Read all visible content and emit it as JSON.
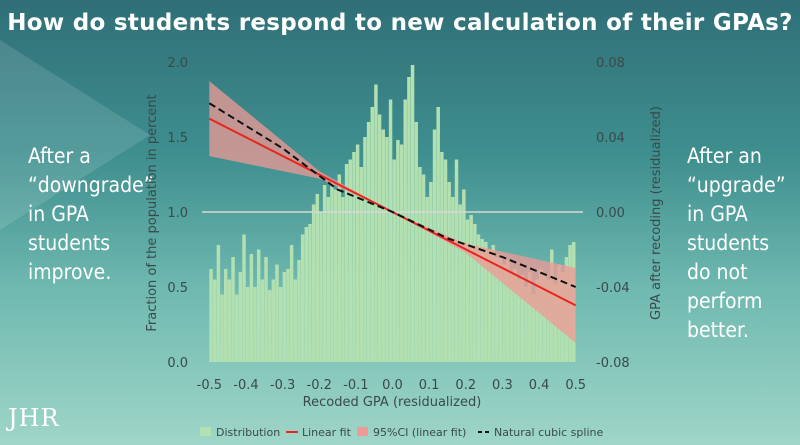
{
  "header": {
    "title": "How do students respond to new calculation of their GPAs?"
  },
  "left_note": [
    "After a",
    "“downgrade”",
    "in GPA",
    "students",
    "improve."
  ],
  "right_note": [
    "After an",
    "“upgrade”",
    "in GPA",
    "students",
    "do not",
    "perform",
    "better."
  ],
  "logo_text": "JHR",
  "colors": {
    "hist": "#b3e0b1",
    "linear": "#e8251f",
    "ci": "#f09a96",
    "spline": "#111111",
    "zero": "#d7d7d7"
  },
  "chart_data": {
    "type": "bar",
    "xlabel": "Recoded GPA (residualized)",
    "ylabel_left": "Fraction of the population in percent",
    "ylabel_right": "GPA after recoding (residualized)",
    "xlim": [
      -0.52,
      0.52
    ],
    "ylim_left": [
      0,
      2.0
    ],
    "ylim_right": [
      -0.08,
      0.08
    ],
    "x_ticks": [
      -0.5,
      -0.4,
      -0.3,
      -0.2,
      -0.1,
      0.0,
      0.1,
      0.2,
      0.3,
      0.4,
      0.5
    ],
    "x_tick_labels": [
      "-0.5",
      "-0.4",
      "-0.3",
      "-0.2",
      "-0.1",
      "0.0",
      "0.1",
      "0.2",
      "0.3",
      "0.4",
      "0.5"
    ],
    "y_left_ticks": [
      0.0,
      0.5,
      1.0,
      1.5,
      2.0
    ],
    "y_left_tick_labels": [
      "0.0",
      "0.5",
      "1.0",
      "1.5",
      "2.0"
    ],
    "y_right_ticks": [
      -0.08,
      -0.04,
      0.0,
      0.04,
      0.08
    ],
    "y_right_tick_labels": [
      "-0.08",
      "-0.04",
      "0.00",
      "0.04",
      "0.08"
    ],
    "legend": [
      {
        "label": "Distribution",
        "kind": "patch-hist"
      },
      {
        "label": "Linear fit",
        "kind": "line-linear"
      },
      {
        "label": "95%CI (linear fit)",
        "kind": "patch-ci"
      },
      {
        "label": "Natural cubic spline",
        "kind": "line-spline"
      }
    ],
    "legend_position": "bottom",
    "histogram": {
      "bin_start": -0.5,
      "bin_width": 0.01,
      "values": [
        0.62,
        0.55,
        0.78,
        0.45,
        0.62,
        0.55,
        0.7,
        0.45,
        0.6,
        0.85,
        0.5,
        0.72,
        0.5,
        0.75,
        0.55,
        0.7,
        0.48,
        0.55,
        0.65,
        0.5,
        0.6,
        0.62,
        0.78,
        0.55,
        0.68,
        0.85,
        0.9,
        0.92,
        1.05,
        1.12,
        1.0,
        1.18,
        1.1,
        1.2,
        1.15,
        1.25,
        1.1,
        1.32,
        1.35,
        1.4,
        1.45,
        1.3,
        1.5,
        1.6,
        1.7,
        1.85,
        1.65,
        1.55,
        1.5,
        1.75,
        1.35,
        1.48,
        1.45,
        1.75,
        1.9,
        1.98,
        1.6,
        1.3,
        1.25,
        1.1,
        1.2,
        1.55,
        1.7,
        1.4,
        1.35,
        1.2,
        1.1,
        1.35,
        1.05,
        1.15,
        0.95,
        0.98,
        0.92,
        0.85,
        0.82,
        0.8,
        0.75,
        0.78,
        0.7,
        0.72,
        0.65,
        0.68,
        0.6,
        0.62,
        0.55,
        0.58,
        0.5,
        0.6,
        0.45,
        0.55,
        0.62,
        0.58,
        0.55,
        0.75,
        0.52,
        0.65,
        0.6,
        0.7,
        0.78,
        0.8
      ],
      "n_bins": 100
    },
    "linear_fit": {
      "x": [
        -0.5,
        0.5
      ],
      "y": [
        0.0498,
        -0.0498
      ]
    },
    "ci_upper": {
      "x": [
        -0.5,
        -0.2,
        0.0,
        0.2,
        0.5
      ],
      "y": [
        0.0698,
        0.0218,
        -0.0002,
        -0.0168,
        -0.0298
      ]
    },
    "ci_lower": {
      "x": [
        -0.5,
        -0.2,
        0.0,
        0.2,
        0.5
      ],
      "y": [
        0.0298,
        0.0178,
        0.0002,
        -0.0218,
        -0.0698
      ]
    },
    "spline": {
      "x": [
        -0.5,
        -0.3,
        -0.15,
        0.0,
        0.15,
        0.3,
        0.5
      ],
      "y": [
        0.058,
        0.034,
        0.012,
        0.0,
        -0.014,
        -0.024,
        -0.04
      ]
    }
  }
}
